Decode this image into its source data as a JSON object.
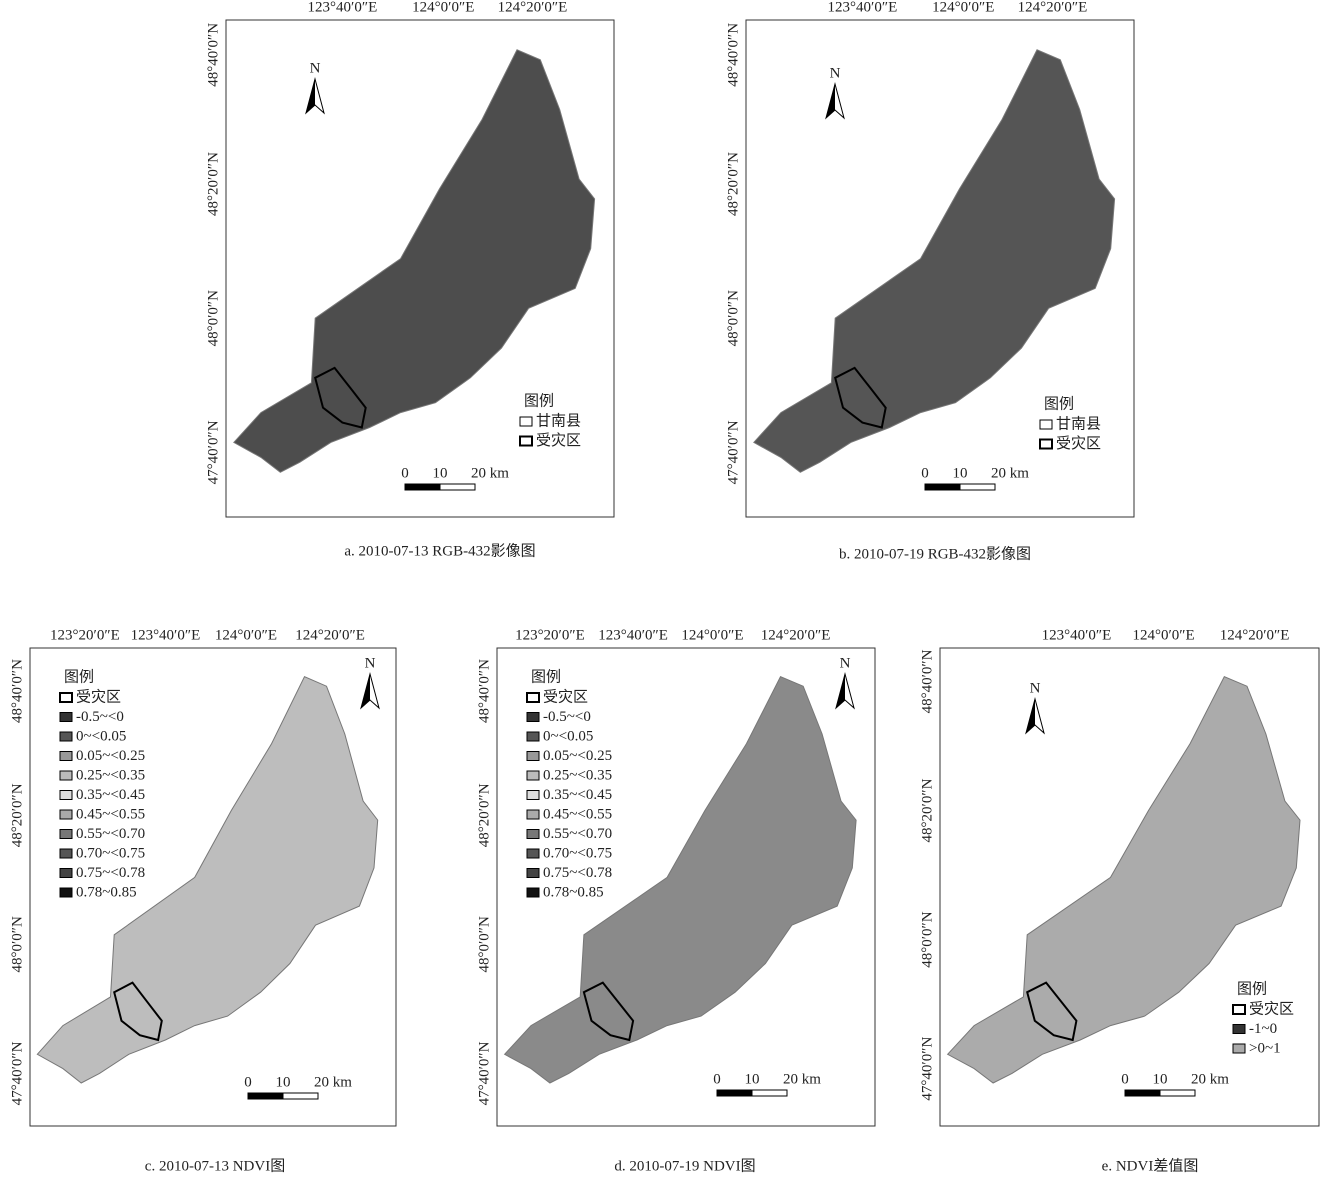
{
  "panels": [
    {
      "caption": "a. 2010-07-13 RGB-432影像图",
      "lon_labels": [
        "123°40′0″E",
        "124°0′0″E",
        "124°20′0″E"
      ],
      "lat_labels": [
        "48°40′0″N",
        "48°20′0″N",
        "48°0′0″N",
        "47°40′0″N"
      ],
      "north": "N",
      "legend": {
        "title": "图例",
        "items": [
          {
            "label": "甘南县",
            "color": "#ffffff"
          },
          {
            "label": "受灾区",
            "color": "#ffffff"
          }
        ]
      },
      "scale": [
        "0",
        "10",
        "20 km"
      ]
    },
    {
      "caption": "b. 2010-07-19 RGB-432影像图",
      "lon_labels": [
        "123°40′0″E",
        "124°0′0″E",
        "124°20′0″E"
      ],
      "lat_labels": [
        "48°40′0″N",
        "48°20′0″N",
        "48°0′0″N",
        "47°40′0″N"
      ],
      "north": "N",
      "legend": {
        "title": "图例",
        "items": [
          {
            "label": "甘南县",
            "color": "#ffffff"
          },
          {
            "label": "受灾区",
            "color": "#ffffff"
          }
        ]
      },
      "scale": [
        "0",
        "10",
        "20 km"
      ]
    },
    {
      "caption": "c. 2010-07-13 NDVI图",
      "lon_labels": [
        "123°20′0″E",
        "123°40′0″E",
        "124°0′0″E",
        "124°20′0″E"
      ],
      "lat_labels": [
        "48°40′0″N",
        "48°20′0″N",
        "48°0′0″N",
        "47°40′0″N"
      ],
      "north": "N",
      "legend": {
        "title": "图例",
        "items": [
          {
            "label": "受灾区",
            "color": "#ffffff"
          },
          {
            "label": "-0.5~<0",
            "color": "#333333"
          },
          {
            "label": "0~<0.05",
            "color": "#555555"
          },
          {
            "label": "0.05~<0.25",
            "color": "#999999"
          },
          {
            "label": "0.25~<0.35",
            "color": "#bbbbbb"
          },
          {
            "label": "0.35~<0.45",
            "color": "#dddddd"
          },
          {
            "label": "0.45~<0.55",
            "color": "#aaaaaa"
          },
          {
            "label": "0.55~<0.70",
            "color": "#777777"
          },
          {
            "label": "0.70~<0.75",
            "color": "#555555"
          },
          {
            "label": "0.75~<0.78",
            "color": "#444444"
          },
          {
            "label": "0.78~0.85",
            "color": "#111111"
          }
        ]
      },
      "scale": [
        "0",
        "10",
        "20 km"
      ]
    },
    {
      "caption": "d. 2010-07-19 NDVI图",
      "lon_labels": [
        "123°20′0″E",
        "123°40′0″E",
        "124°0′0″E",
        "124°20′0″E"
      ],
      "lat_labels": [
        "48°40′0″N",
        "48°20′0″N",
        "48°0′0″N",
        "47°40′0″N"
      ],
      "north": "N",
      "legend": {
        "title": "图例",
        "items": [
          {
            "label": "受灾区",
            "color": "#ffffff"
          },
          {
            "label": "-0.5~<0",
            "color": "#333333"
          },
          {
            "label": "0~<0.05",
            "color": "#555555"
          },
          {
            "label": "0.05~<0.25",
            "color": "#999999"
          },
          {
            "label": "0.25~<0.35",
            "color": "#bbbbbb"
          },
          {
            "label": "0.35~<0.45",
            "color": "#dddddd"
          },
          {
            "label": "0.45~<0.55",
            "color": "#aaaaaa"
          },
          {
            "label": "0.55~<0.70",
            "color": "#777777"
          },
          {
            "label": "0.70~<0.75",
            "color": "#555555"
          },
          {
            "label": "0.75~<0.78",
            "color": "#444444"
          },
          {
            "label": "0.78~0.85",
            "color": "#111111"
          }
        ]
      },
      "scale": [
        "0",
        "10",
        "20 km"
      ]
    },
    {
      "caption": "e. NDVI差值图",
      "lon_labels": [
        "123°40′0″E",
        "124°0′0″E",
        "124°20′0″E"
      ],
      "lat_labels": [
        "48°40′0″N",
        "48°20′0″N",
        "48°0′0″N",
        "47°40′0″N"
      ],
      "north": "N",
      "legend": {
        "title": "图例",
        "items": [
          {
            "label": "受灾区",
            "color": "#ffffff"
          },
          {
            "label": "-1~0",
            "color": "#333333"
          },
          {
            "label": ">0~1",
            "color": "#aaaaaa"
          }
        ]
      },
      "scale": [
        "0",
        "10",
        "20 km"
      ]
    }
  ]
}
